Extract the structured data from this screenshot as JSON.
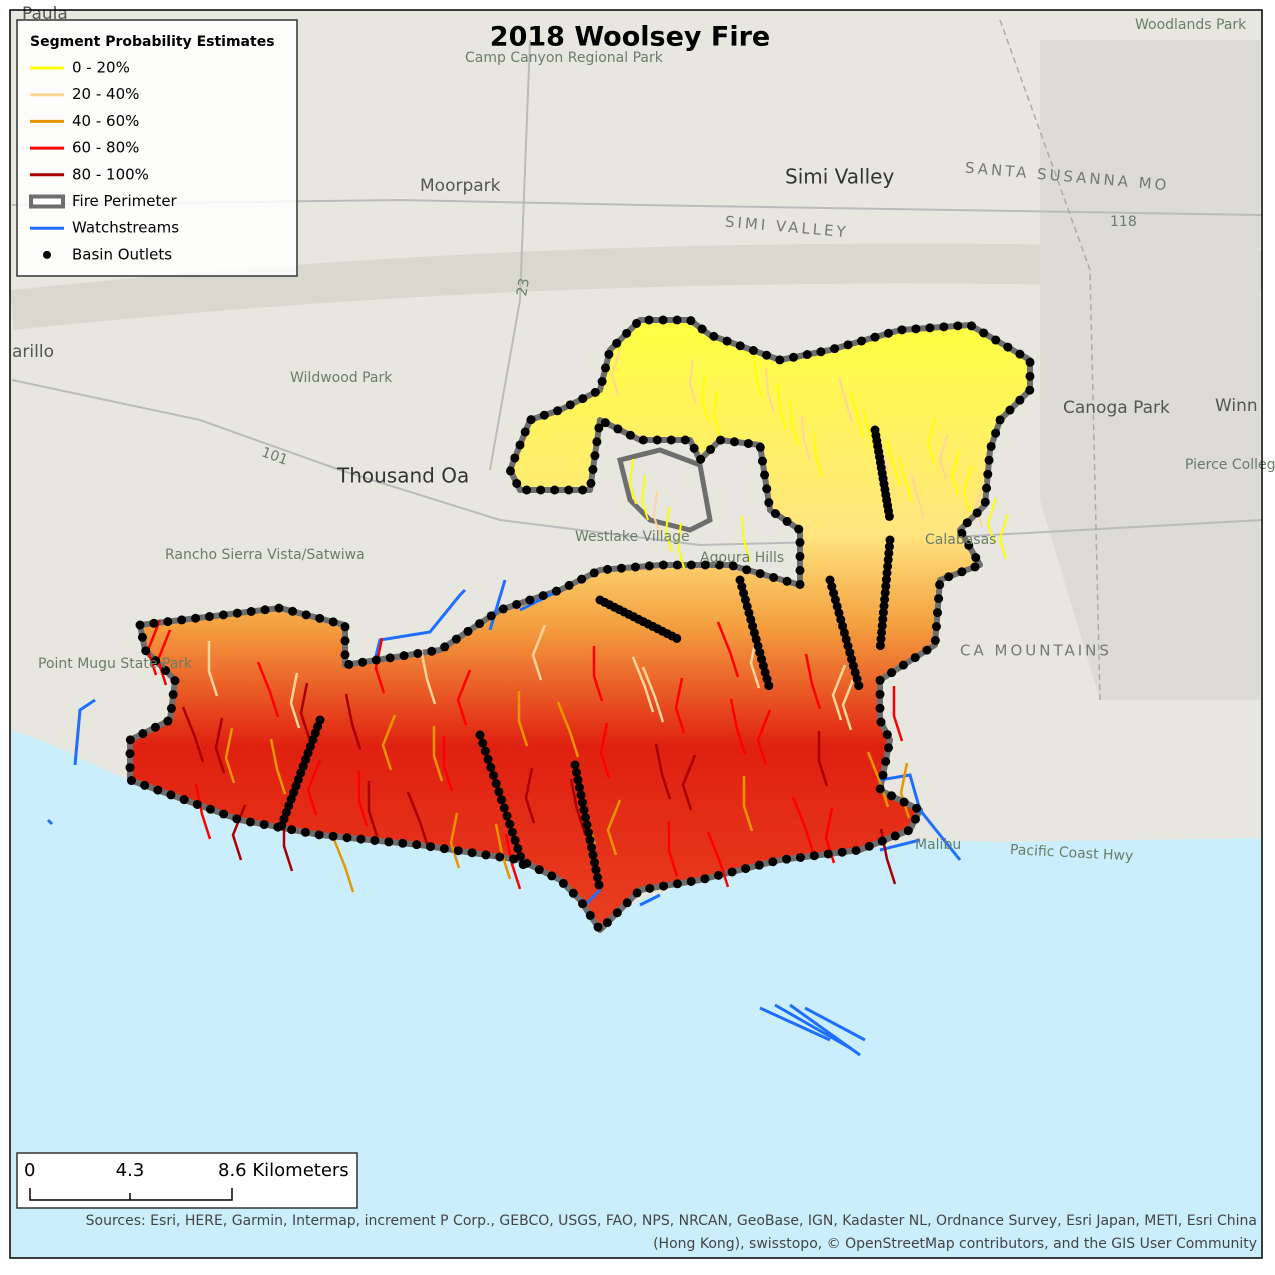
{
  "title": "2018 Woolsey Fire",
  "legend": {
    "title": "Segment Probability Estimates",
    "items": [
      {
        "label": "0 - 20%",
        "symbol": "line",
        "color": "#ffff00"
      },
      {
        "label": "20 - 40%",
        "symbol": "line",
        "color": "#ffd59a"
      },
      {
        "label": "40 - 60%",
        "symbol": "line",
        "color": "#e69600"
      },
      {
        "label": "60 - 80%",
        "symbol": "line",
        "color": "#ff0000"
      },
      {
        "label": "80 - 100%",
        "symbol": "line",
        "color": "#a80000"
      },
      {
        "label": "Fire Perimeter",
        "symbol": "perimeter",
        "color": "#6e6e6e"
      },
      {
        "label": "Watchstreams",
        "symbol": "line",
        "color": "#1f6fff"
      },
      {
        "label": "Basin Outlets",
        "symbol": "dot",
        "color": "#000000"
      }
    ]
  },
  "place_labels": [
    "Paula",
    "Moorpark",
    "Simi Valley",
    "SANTA SUSANNA MO",
    "SIMI VALLEY",
    "arillo",
    "Wildwood Park",
    "Thousand Oa",
    "Westlake Village",
    "Agoura Hills",
    "Calabasas",
    "Canoga Park",
    "Winn",
    "Pierce College",
    "Rancho Sierra Vista/Satwiwa",
    "Point Mugu State Park",
    "CA MOUNTAINS",
    "Malibu",
    "Pacific Coast Hwy",
    "Camp Canyon Regional Park",
    "Woodlands Park",
    "101",
    "23",
    "118"
  ],
  "scale_bar": {
    "labels": [
      "0",
      "4.3",
      "8.6 Kilometers"
    ]
  },
  "sources": [
    "Sources: Esri, HERE, Garmin, Intermap, increment P Corp., GEBCO, USGS, FAO, NPS, NRCAN, GeoBase, IGN, Kadaster NL, Ordnance Survey, Esri Japan, METI, Esri China",
    "(Hong Kong), swisstopo, © OpenStreetMap contributors, and the GIS User Community"
  ]
}
